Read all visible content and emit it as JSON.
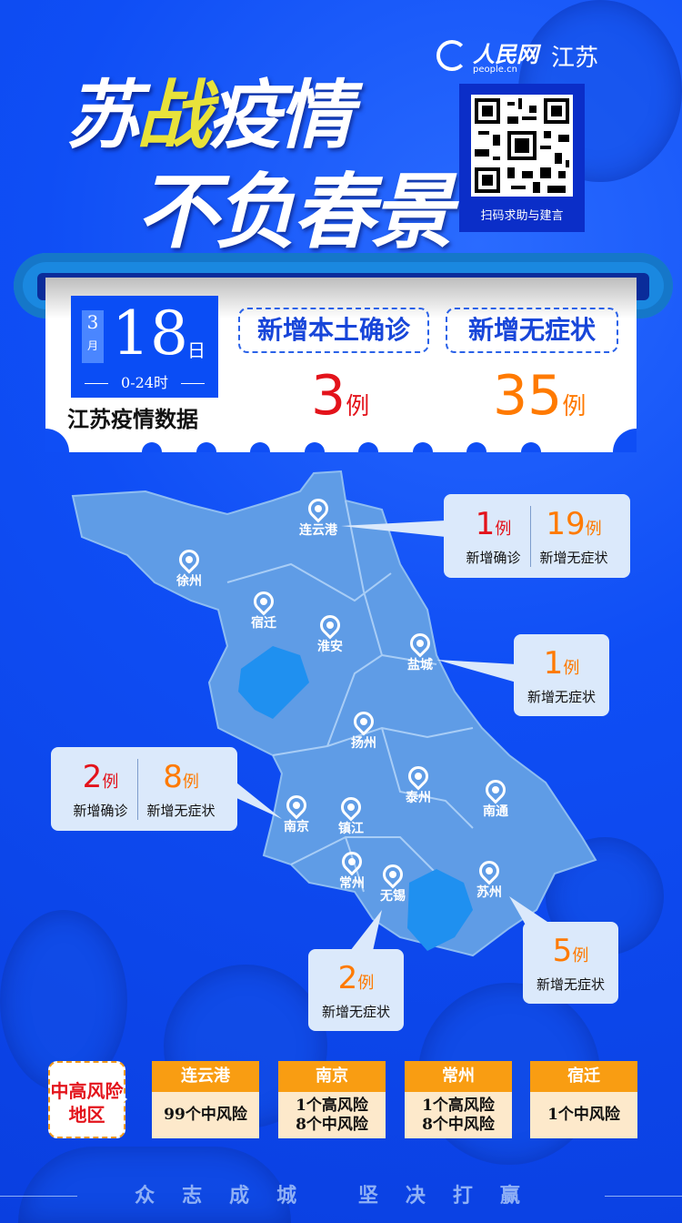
{
  "header": {
    "title_line1_a": "苏",
    "title_line1_b": "战",
    "title_line1_c": "疫情",
    "title_line2": "不负春景",
    "logo_name": "人民网",
    "logo_url": "people.cn",
    "logo_region": "江苏",
    "qr_caption": "扫码求助与建言"
  },
  "summary": {
    "month": "3",
    "month_unit": "月",
    "day": "18",
    "day_unit": "日",
    "hours": "0-24时",
    "title": "江苏疫情数据",
    "confirmed_label": "新增本土确诊",
    "confirmed_value": "3",
    "asymptomatic_label": "新增无症状",
    "asymptomatic_value": "35",
    "unit": "例"
  },
  "cities": [
    "连云港",
    "徐州",
    "宿迁",
    "淮安",
    "盐城",
    "扬州",
    "泰州",
    "南通",
    "南京",
    "镇江",
    "常州",
    "无锡",
    "苏州"
  ],
  "callouts": {
    "lianyungang": {
      "confirmed": "1",
      "asymptomatic": "19"
    },
    "yancheng": {
      "asymptomatic": "1"
    },
    "nanjing": {
      "confirmed": "2",
      "asymptomatic": "8"
    },
    "wuxi": {
      "asymptomatic": "2"
    },
    "suzhou": {
      "asymptomatic": "5"
    },
    "unit": "例",
    "confirmed_label": "新增确诊",
    "asymptomatic_label": "新增无症状"
  },
  "risk": {
    "label": "中高风险地区",
    "areas": [
      {
        "city": "连云港",
        "detail": "99个中风险"
      },
      {
        "city": "南京",
        "detail": "1个高风险\n8个中风险"
      },
      {
        "city": "常州",
        "detail": "1个高风险\n8个中风险"
      },
      {
        "city": "宿迁",
        "detail": "1个中风险"
      }
    ]
  },
  "footer": {
    "slogan": "众志成城 坚决打赢"
  },
  "colors": {
    "background": "#0f4ef5",
    "confirmed": "#e3131b",
    "asymptomatic": "#ff7a00",
    "risk_header": "#f99d12",
    "map": "#5f9ce6"
  }
}
